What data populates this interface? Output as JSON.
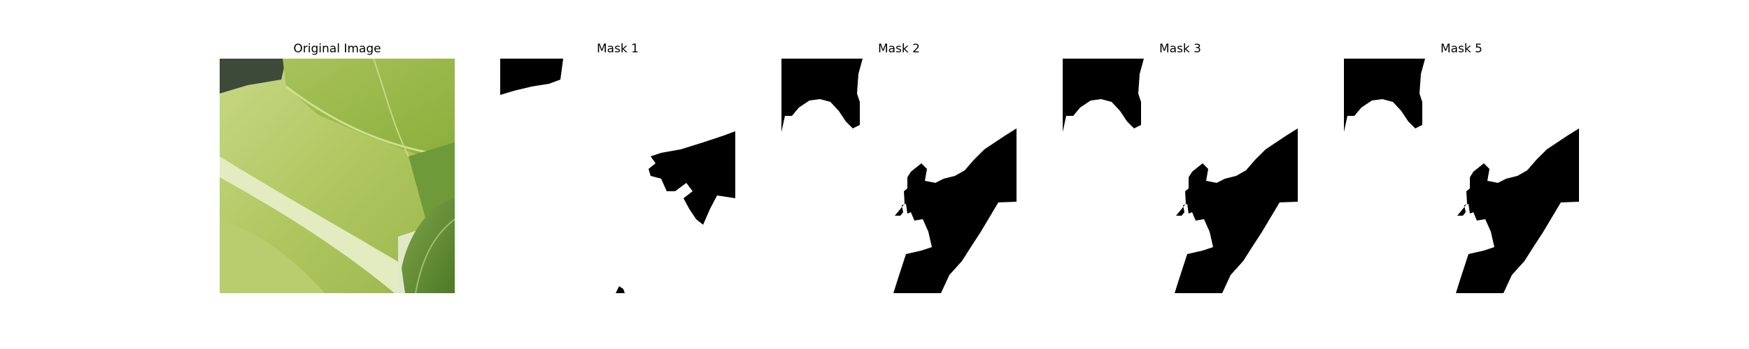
{
  "figure": {
    "panels": [
      {
        "title": "Original Image",
        "kind": "photo"
      },
      {
        "title": "Mask 1",
        "kind": "mask"
      },
      {
        "title": "Mask 2",
        "kind": "mask"
      },
      {
        "title": "Mask 3",
        "kind": "mask"
      },
      {
        "title": "Mask 5",
        "kind": "mask"
      }
    ]
  },
  "colors": {
    "background": "#ffffff",
    "mask_foreground": "#ffffff",
    "mask_background": "#000000",
    "leaf_light": "#c9d88a",
    "leaf_mid": "#a9c35c",
    "leaf_dark": "#5f8a2c"
  }
}
